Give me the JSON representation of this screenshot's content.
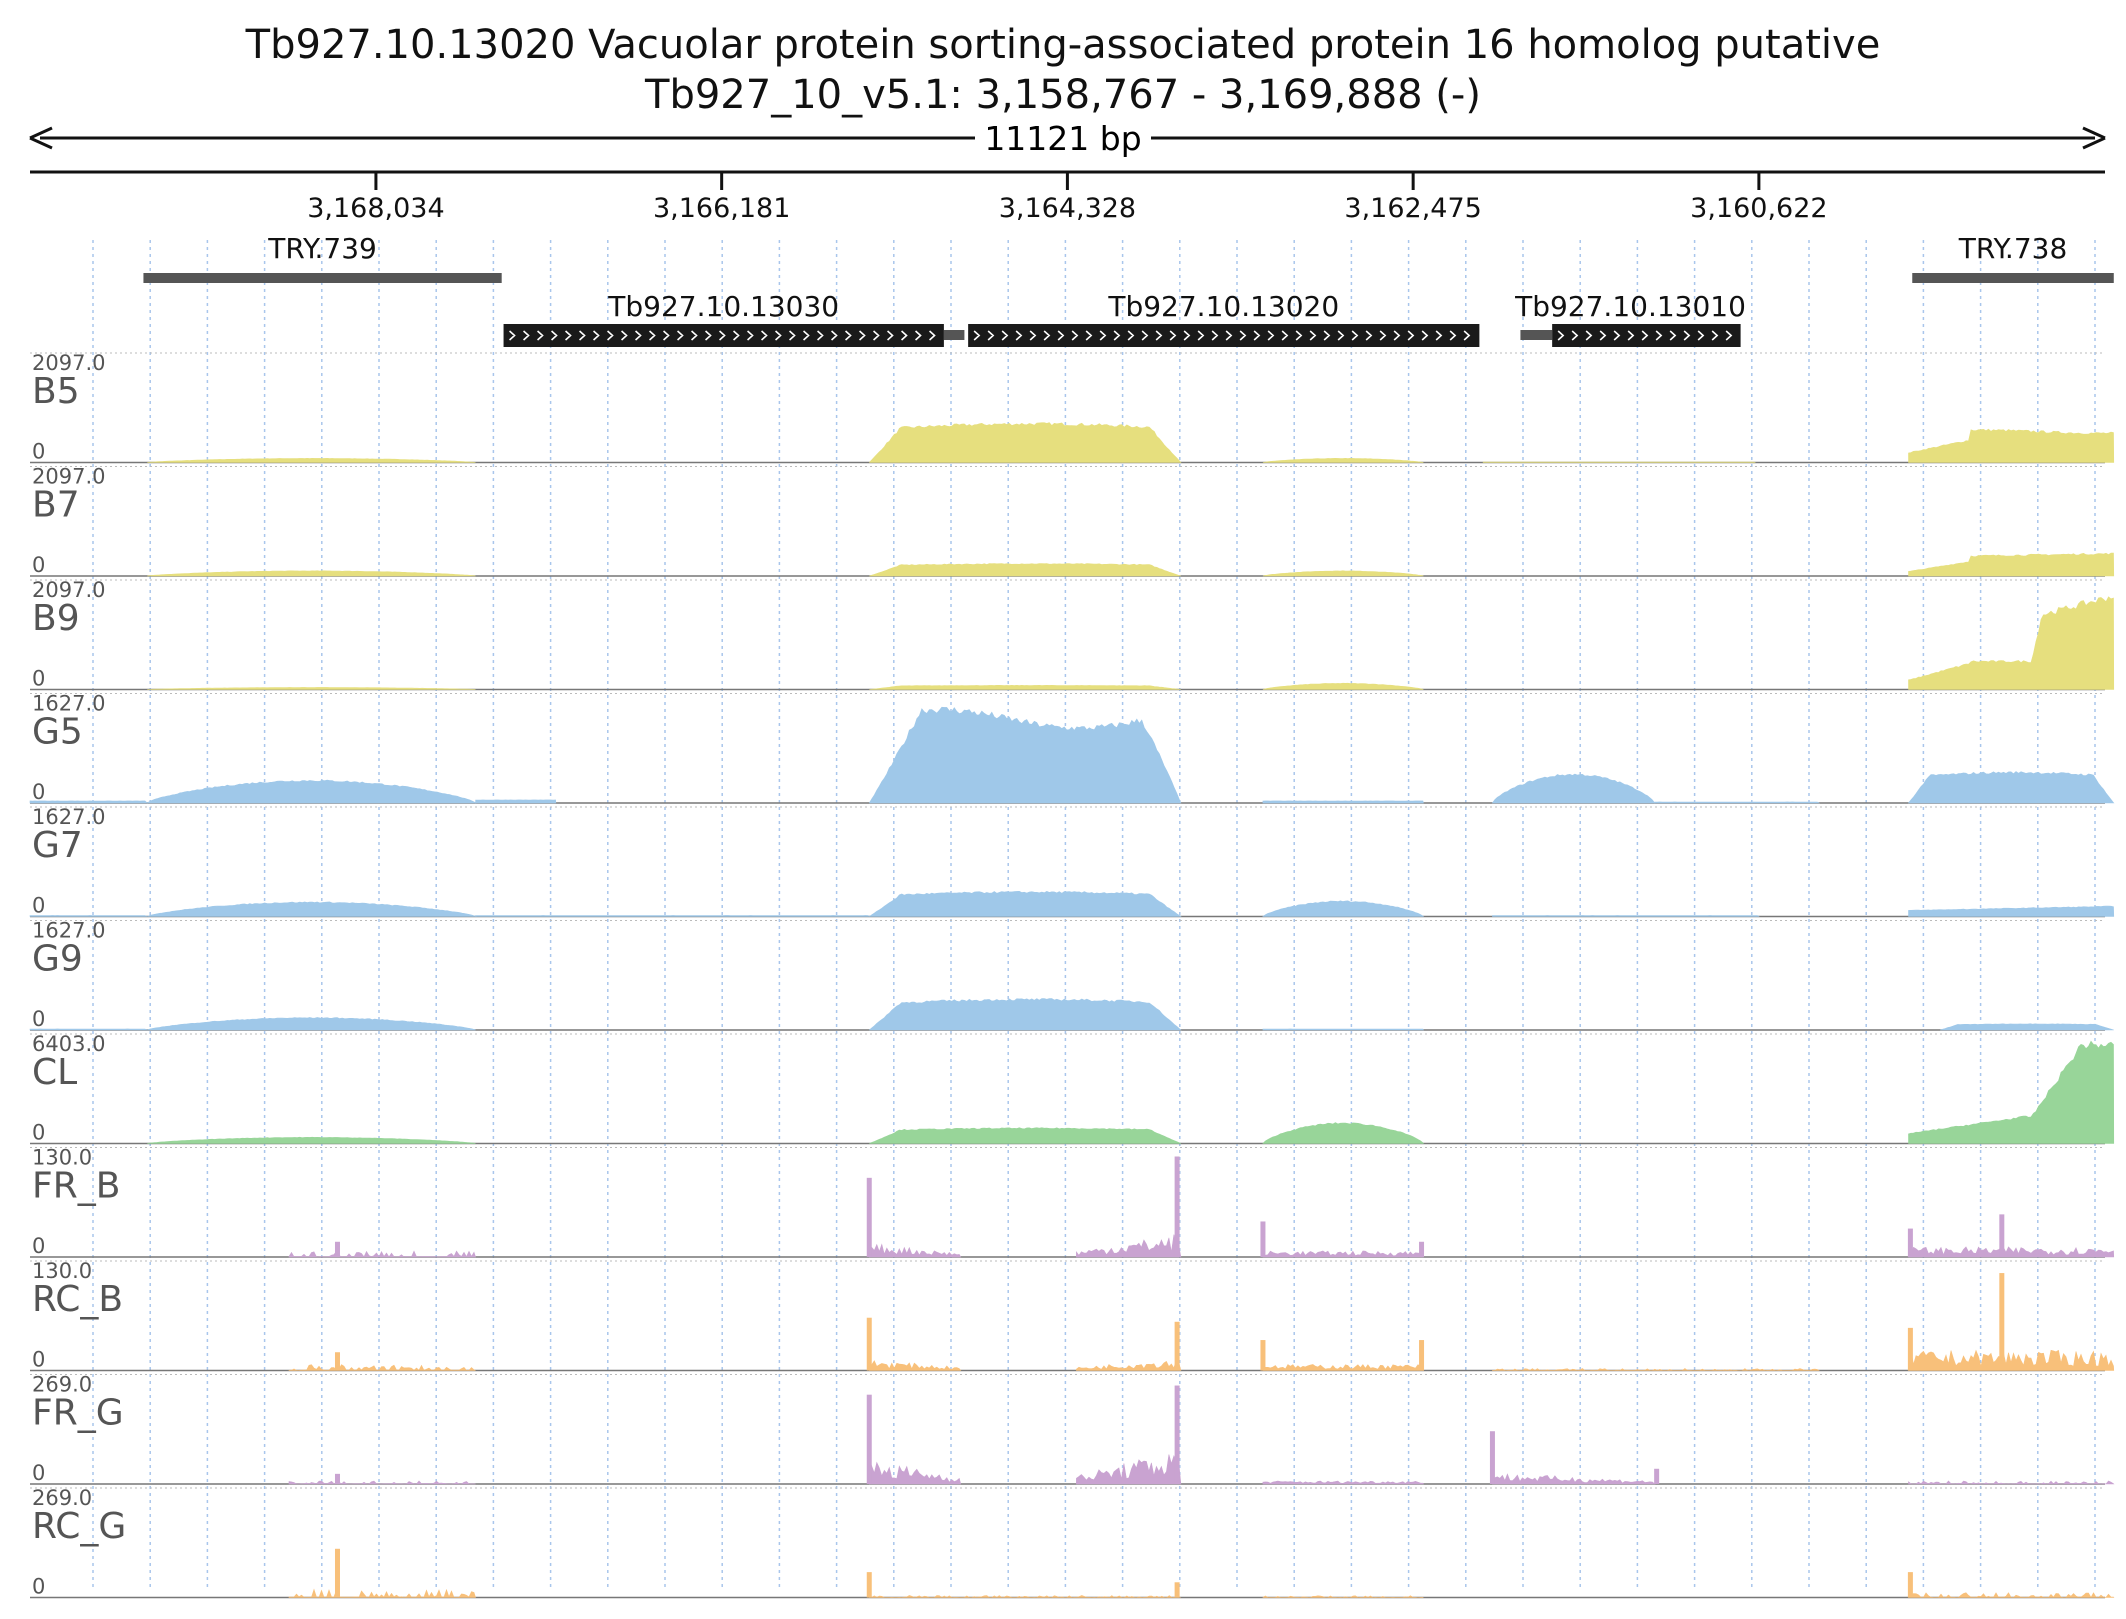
{
  "chart_data": {
    "type": "area",
    "title": "Tb927.10.13020  Vacuolar protein sorting-associated protein 16 homolog  putative",
    "subtitle": "Tb927_10_v5.1: 3,158,767 - 3,169,888 (-)",
    "span_label": "11121 bp",
    "region": {
      "start": 3169888,
      "end": 3158767,
      "strand": "-"
    },
    "ticks": [
      {
        "pos": 3168034,
        "label": "3,168,034"
      },
      {
        "pos": 3166181,
        "label": "3,166,181"
      },
      {
        "pos": 3164328,
        "label": "3,164,328"
      },
      {
        "pos": 3162475,
        "label": "3,162,475"
      },
      {
        "pos": 3160622,
        "label": "3,160,622"
      }
    ],
    "features": [
      {
        "label": "TRY.739",
        "type": "region",
        "start": 3169280,
        "end": 3167360
      },
      {
        "label": "TRY.738",
        "type": "region",
        "start": 3159800,
        "end": 3158720
      },
      {
        "label": "Tb927.10.13030",
        "type": "gene",
        "start": 3167350,
        "end": 3164990,
        "utr_end": 3164880
      },
      {
        "label": "Tb927.10.13020",
        "type": "gene",
        "start": 3164860,
        "end": 3162120
      },
      {
        "label": "Tb927.10.13010",
        "type": "gene",
        "start": 3161900,
        "end": 3160720,
        "utr_start": 3161900,
        "utr_end": 3161730
      }
    ],
    "tracks": [
      {
        "name": "B5",
        "max": "2097.0",
        "min": "0",
        "color": "#e6df7e",
        "kind": "cov",
        "segments": [
          [
            3169260,
            3167500,
            0.04,
            "hump"
          ],
          [
            3165390,
            3163720,
            0.38,
            "plateau"
          ],
          [
            3163280,
            3162420,
            0.04,
            "hump"
          ],
          [
            3159820,
            3158720,
            0.32,
            "rampB5"
          ],
          [
            3162100,
            3160640,
            0.005,
            "flat"
          ]
        ]
      },
      {
        "name": "B7",
        "max": "2097.0",
        "min": "0",
        "color": "#e6df7e",
        "kind": "cov",
        "segments": [
          [
            3169260,
            3167500,
            0.05,
            "hump"
          ],
          [
            3165390,
            3163720,
            0.12,
            "plateau"
          ],
          [
            3163280,
            3162420,
            0.05,
            "hump"
          ],
          [
            3159820,
            3158720,
            0.22,
            "rampB7"
          ]
        ]
      },
      {
        "name": "B9",
        "max": "2097.0",
        "min": "0",
        "color": "#e6df7e",
        "kind": "cov",
        "segments": [
          [
            3169260,
            3167500,
            0.02,
            "hump"
          ],
          [
            3165390,
            3163720,
            0.04,
            "plateau"
          ],
          [
            3163280,
            3162420,
            0.06,
            "hump"
          ],
          [
            3159820,
            3158720,
            0.92,
            "rampB9"
          ]
        ]
      },
      {
        "name": "G5",
        "max": "1627.0",
        "min": "0",
        "color": "#9fc8e9",
        "kind": "cov",
        "segments": [
          [
            3169888,
            3169260,
            0.02,
            "flat"
          ],
          [
            3169260,
            3167500,
            0.22,
            "hump"
          ],
          [
            3167500,
            3167070,
            0.03,
            "flat"
          ],
          [
            3165390,
            3163720,
            0.92,
            "bigplateau"
          ],
          [
            3163280,
            3162420,
            0.02,
            "flat"
          ],
          [
            3162050,
            3161180,
            0.28,
            "hump"
          ],
          [
            3161180,
            3160300,
            0.01,
            "flat"
          ],
          [
            3159820,
            3158720,
            0.3,
            "plateau"
          ]
        ]
      },
      {
        "name": "G7",
        "max": "1627.0",
        "min": "0",
        "color": "#9fc8e9",
        "kind": "cov",
        "segments": [
          [
            3169888,
            3169260,
            0.01,
            "flat"
          ],
          [
            3169260,
            3167500,
            0.14,
            "hump"
          ],
          [
            3167500,
            3165390,
            0.01,
            "flat"
          ],
          [
            3165390,
            3163720,
            0.24,
            "plateau"
          ],
          [
            3163280,
            3162420,
            0.15,
            "hump"
          ],
          [
            3162050,
            3160622,
            0.01,
            "flat"
          ],
          [
            3159820,
            3158720,
            0.1,
            "rampG7"
          ]
        ]
      },
      {
        "name": "G9",
        "max": "1627.0",
        "min": "0",
        "color": "#9fc8e9",
        "kind": "cov",
        "segments": [
          [
            3169888,
            3169260,
            0.01,
            "flat"
          ],
          [
            3169260,
            3167500,
            0.12,
            "hump"
          ],
          [
            3165390,
            3163720,
            0.3,
            "plateau"
          ],
          [
            3163280,
            3162420,
            0.01,
            "flat"
          ],
          [
            3159650,
            3158720,
            0.06,
            "plateau"
          ]
        ]
      },
      {
        "name": "CL",
        "max": "6403.0",
        "min": "0",
        "color": "#98d599",
        "kind": "cov",
        "segments": [
          [
            3169260,
            3167500,
            0.06,
            "hump"
          ],
          [
            3165390,
            3163720,
            0.15,
            "plateau"
          ],
          [
            3163280,
            3162420,
            0.2,
            "hump"
          ],
          [
            3159820,
            3158720,
            0.97,
            "rampCL"
          ]
        ]
      },
      {
        "name": "FR_B",
        "max": "130.0",
        "min": "0",
        "color": "#c9a3d1",
        "kind": "spiky",
        "segments": [
          [
            3168500,
            3167500,
            0.06,
            "sparse"
          ],
          [
            3165390,
            3164900,
            0.1,
            "spikyStart"
          ],
          [
            3164280,
            3163720,
            0.15,
            "spikyEnd"
          ],
          [
            3163280,
            3162420,
            0.06,
            "spikyBoth"
          ],
          [
            3159820,
            3158720,
            0.1,
            "spikyMid"
          ]
        ]
      },
      {
        "name": "RC_B",
        "max": "130.0",
        "min": "0",
        "color": "#f8c07a",
        "kind": "spiky",
        "segments": [
          [
            3168500,
            3167500,
            0.06,
            "sparseEnd"
          ],
          [
            3165390,
            3164900,
            0.08,
            "spikyStart"
          ],
          [
            3164280,
            3163720,
            0.08,
            "spikyEnd"
          ],
          [
            3163280,
            3162420,
            0.06,
            "spikyBoth"
          ],
          [
            3162050,
            3160300,
            0.02,
            "sparse"
          ],
          [
            3159820,
            3158720,
            0.2,
            "spikyRC"
          ]
        ]
      },
      {
        "name": "FR_G",
        "max": "269.0",
        "min": "0",
        "color": "#c9a3d1",
        "kind": "spiky",
        "segments": [
          [
            3168500,
            3167500,
            0.03,
            "sparse"
          ],
          [
            3165390,
            3164900,
            0.18,
            "spikyStart"
          ],
          [
            3164280,
            3163720,
            0.22,
            "spikyEnd"
          ],
          [
            3163280,
            3162420,
            0.03,
            "spikyBoth"
          ],
          [
            3162050,
            3161180,
            0.08,
            "spikyStart"
          ],
          [
            3159820,
            3158720,
            0.03,
            "sparse"
          ]
        ]
      },
      {
        "name": "RC_G",
        "max": "269.0",
        "min": "0",
        "color": "#f8c07a",
        "kind": "spiky",
        "segments": [
          [
            3168500,
            3167500,
            0.08,
            "sparseEnd"
          ],
          [
            3165390,
            3163720,
            0.02,
            "sparse"
          ],
          [
            3163280,
            3162420,
            0.02,
            "sparse"
          ],
          [
            3159820,
            3158720,
            0.05,
            "sparse"
          ]
        ]
      }
    ],
    "spikes": {
      "FR_B": [
        [
          3165390,
          0.78
        ],
        [
          3163740,
          0.99
        ],
        [
          3163280,
          0.35
        ],
        [
          3162430,
          0.15
        ],
        [
          3159810,
          0.28
        ],
        [
          3159320,
          0.42
        ],
        [
          3168240,
          0.15
        ]
      ],
      "RC_B": [
        [
          3165390,
          0.52
        ],
        [
          3163740,
          0.48
        ],
        [
          3163280,
          0.3
        ],
        [
          3162430,
          0.3
        ],
        [
          3159810,
          0.42
        ],
        [
          3159320,
          0.96
        ],
        [
          3168240,
          0.18
        ]
      ],
      "FR_G": [
        [
          3165390,
          0.88
        ],
        [
          3163740,
          0.97
        ],
        [
          3162050,
          0.52
        ],
        [
          3161170,
          0.15
        ],
        [
          3168240,
          0.1
        ]
      ],
      "RC_G": [
        [
          3168240,
          0.48
        ],
        [
          3165390,
          0.25
        ],
        [
          3163740,
          0.15
        ],
        [
          3159810,
          0.25
        ]
      ]
    }
  }
}
